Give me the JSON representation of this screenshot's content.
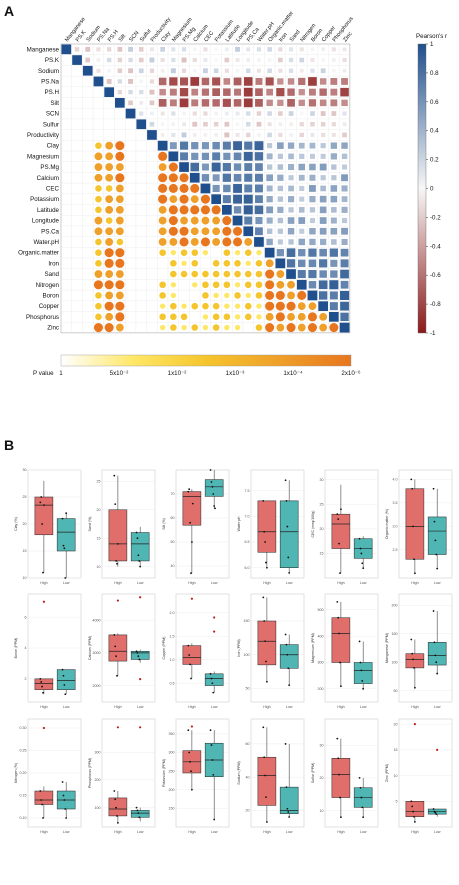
{
  "panels": {
    "a": "A",
    "b": "B"
  },
  "heatmap": {
    "variables": [
      "Manganese",
      "PS.K",
      "Sodium",
      "PS.Na",
      "PS.H",
      "Silt",
      "SCN",
      "Sulfur",
      "Productivity",
      "Clay",
      "Magnesium",
      "PS.Mg",
      "Calcium",
      "CEC",
      "Potassium",
      "Latitude",
      "Longitude",
      "PS.Ca",
      "Water.pH",
      "Organic.matter",
      "Iron",
      "Sand",
      "Nitrogen",
      "Boron",
      "Copper",
      "Phosphorus",
      "Zinc"
    ],
    "colorbar_title": "Pearson's r",
    "colorbar_ticks": [
      "1",
      "0.8",
      "0.6",
      "0.4",
      "0.2",
      "0",
      "-0.2",
      "-0.4",
      "-0.6",
      "-0.8",
      "-1"
    ],
    "colors": {
      "positive": "#1f4f8c",
      "negative": "#8b1a1a",
      "neutral": "#f7f7f7"
    },
    "pvalue_label": "P value",
    "pvalue_ticks": [
      "1",
      "5x10⁻²",
      "1x10⁻²",
      "1x10⁻³",
      "1x10⁻⁴",
      "2x10⁻⁶"
    ],
    "pvalue_colors": [
      "#ffffff",
      "#ffe766",
      "#f5c52d",
      "#efa02a",
      "#e8761e"
    ]
  },
  "chart_data": [
    {
      "type": "box",
      "ylabel": "Clay (%)",
      "categories": [
        "High",
        "Low"
      ],
      "yticks": [
        "10",
        "15",
        "20",
        "25",
        "30"
      ],
      "ylim": [
        10,
        30
      ],
      "boxes": [
        {
          "q1": 18,
          "median": 23.5,
          "q3": 25,
          "whisker_low": 11,
          "whisker_high": 28,
          "points": [
            24,
            25,
            20,
            11,
            23.5
          ]
        },
        {
          "q1": 15,
          "median": 18.5,
          "q3": 21,
          "whisker_low": 10,
          "whisker_high": 22,
          "points": [
            21,
            16,
            15.5,
            10,
            22
          ]
        }
      ]
    },
    {
      "type": "box",
      "ylabel": "Sand (%)",
      "categories": [
        "High",
        "Low"
      ],
      "yticks": [
        "10",
        "15",
        "20",
        "25"
      ],
      "ylim": [
        8,
        27
      ],
      "boxes": [
        {
          "q1": 11,
          "median": 14,
          "q3": 20,
          "whisker_low": 10,
          "whisker_high": 26,
          "points": [
            26,
            21,
            11,
            10.5,
            14
          ]
        },
        {
          "q1": 11,
          "median": 14,
          "q3": 16,
          "whisker_low": 10,
          "whisker_high": 17,
          "points": [
            16,
            15,
            12,
            11,
            10
          ]
        }
      ]
    },
    {
      "type": "box",
      "ylabel": "Silt (%)",
      "categories": [
        "High",
        "Low"
      ],
      "yticks": [
        "40",
        "50",
        "60",
        "70"
      ],
      "ylim": [
        35,
        80
      ],
      "boxes": [
        {
          "q1": 57,
          "median": 69,
          "q3": 71,
          "whisker_low": 37,
          "whisker_high": 72,
          "points": [
            71,
            72,
            58,
            37,
            50,
            66
          ]
        },
        {
          "q1": 69,
          "median": 73,
          "q3": 76,
          "whisker_low": 64,
          "whisker_high": 80,
          "points": [
            80,
            75,
            73,
            70,
            65,
            64
          ]
        }
      ]
    },
    {
      "type": "box",
      "ylabel": "Water.pH",
      "categories": [
        "High",
        "Low"
      ],
      "yticks": [
        "6.0",
        "6.5",
        "7.0",
        "7.5"
      ],
      "ylim": [
        5.8,
        7.9
      ],
      "boxes": [
        {
          "q1": 6.3,
          "median": 6.7,
          "q3": 7.3,
          "whisker_low": 6.0,
          "whisker_high": 7.3,
          "points": [
            7.3,
            6.7,
            6.5,
            6.1,
            6.0
          ]
        },
        {
          "q1": 6.0,
          "median": 6.7,
          "q3": 7.3,
          "whisker_low": 5.9,
          "whisker_high": 7.7,
          "points": [
            7.7,
            7.3,
            6.8,
            6.2,
            5.9
          ]
        }
      ]
    },
    {
      "type": "box",
      "ylabel": "CEC (meq/100g)",
      "categories": [
        "High",
        "Low"
      ],
      "yticks": [
        "15",
        "20",
        "25",
        "30"
      ],
      "ylim": [
        10,
        32
      ],
      "boxes": [
        {
          "q1": 16,
          "median": 21,
          "q3": 23,
          "whisker_low": 11,
          "whisker_high": 29,
          "points": [
            23,
            22,
            17,
            11,
            24
          ]
        },
        {
          "q1": 14,
          "median": 16,
          "q3": 18,
          "whisker_low": 12,
          "whisker_high": 18.5,
          "points": [
            18,
            16,
            15,
            13,
            12
          ]
        }
      ]
    },
    {
      "type": "box",
      "ylabel": "Organic.matter (%)",
      "categories": [
        "High",
        "Low"
      ],
      "yticks": [
        "2.5",
        "3.0",
        "3.5",
        "4.0"
      ],
      "ylim": [
        1.9,
        4.2
      ],
      "boxes": [
        {
          "q1": 2.3,
          "median": 3.0,
          "q3": 3.8,
          "whisker_low": 2.0,
          "whisker_high": 4.0,
          "points": [
            4.0,
            3.8,
            3.0,
            2.3,
            2.0
          ]
        },
        {
          "q1": 2.4,
          "median": 2.9,
          "q3": 3.2,
          "whisker_low": 2.1,
          "whisker_high": 3.8,
          "points": [
            3.8,
            3.1,
            2.7,
            2.4,
            2.1
          ]
        }
      ]
    },
    {
      "type": "box",
      "ylabel": "Boron (PPM)",
      "categories": [
        "High",
        "Low"
      ],
      "yticks": [
        "2",
        "4",
        "6"
      ],
      "ylim": [
        0.5,
        7.5
      ],
      "boxes": [
        {
          "q1": 1.3,
          "median": 1.7,
          "q3": 2.0,
          "whisker_low": 1.0,
          "whisker_high": 2.0,
          "points": [
            2.0,
            1.8,
            1.5,
            1.1
          ],
          "outliers": [
            7.0
          ]
        },
        {
          "q1": 1.3,
          "median": 1.9,
          "q3": 2.6,
          "whisker_low": 1.0,
          "whisker_high": 2.6,
          "points": [
            2.6,
            2.2,
            1.6,
            1.0
          ]
        }
      ]
    },
    {
      "type": "box",
      "ylabel": "Calcium (PPM)",
      "categories": [
        "High",
        "Low"
      ],
      "yticks": [
        "2000",
        "3000",
        "4000"
      ],
      "ylim": [
        1500,
        4800
      ],
      "boxes": [
        {
          "q1": 2750,
          "median": 3050,
          "q3": 3550,
          "whisker_low": 2300,
          "whisker_high": 3600,
          "points": [
            3550,
            3200,
            2900,
            2300
          ],
          "outliers": [
            4600
          ]
        },
        {
          "q1": 2800,
          "median": 3000,
          "q3": 3050,
          "whisker_low": 2700,
          "whisker_high": 3100,
          "points": [
            3050,
            3000,
            2900,
            2800
          ],
          "outliers": [
            4700,
            2200
          ]
        }
      ]
    },
    {
      "type": "box",
      "ylabel": "Copper (PPM)",
      "categories": [
        "High",
        "Low"
      ],
      "yticks": [
        "0.5",
        "1.0",
        "1.5",
        "2.0"
      ],
      "ylim": [
        0.1,
        2.4
      ],
      "boxes": [
        {
          "q1": 0.9,
          "median": 1.05,
          "q3": 1.3,
          "whisker_low": 0.6,
          "whisker_high": 1.35,
          "points": [
            1.3,
            1.1,
            0.9,
            0.6
          ],
          "outliers": [
            2.3
          ]
        },
        {
          "q1": 0.45,
          "median": 0.6,
          "q3": 0.7,
          "whisker_low": 0.3,
          "whisker_high": 0.75,
          "points": [
            0.7,
            0.6,
            0.5,
            0.3
          ],
          "outliers": [
            1.9,
            1.6
          ]
        }
      ]
    },
    {
      "type": "box",
      "ylabel": "Iron (PPM)",
      "categories": [
        "High",
        "Low"
      ],
      "yticks": [
        "50",
        "100",
        "150"
      ],
      "ylim": [
        30,
        190
      ],
      "boxes": [
        {
          "q1": 85,
          "median": 120,
          "q3": 150,
          "whisker_low": 60,
          "whisker_high": 185,
          "points": [
            185,
            150,
            120,
            90,
            60
          ]
        },
        {
          "q1": 80,
          "median": 100,
          "q3": 115,
          "whisker_low": 55,
          "whisker_high": 130,
          "points": [
            130,
            115,
            100,
            80,
            55
          ]
        }
      ]
    },
    {
      "type": "box",
      "ylabel": "Magnesium (PPM)",
      "categories": [
        "High",
        "Low"
      ],
      "yticks": [
        "200",
        "300",
        "400",
        "500"
      ],
      "ylim": [
        150,
        560
      ],
      "boxes": [
        {
          "q1": 300,
          "median": 410,
          "q3": 470,
          "whisker_low": 210,
          "whisker_high": 530,
          "points": [
            530,
            470,
            410,
            300,
            210
          ]
        },
        {
          "q1": 220,
          "median": 270,
          "q3": 300,
          "whisker_low": 200,
          "whisker_high": 380,
          "points": [
            380,
            300,
            270,
            230,
            200
          ]
        }
      ]
    },
    {
      "type": "box",
      "ylabel": "Manganese (PPM)",
      "categories": [
        "High",
        "Low"
      ],
      "yticks": [
        "50",
        "100",
        "150",
        "200"
      ],
      "ylim": [
        30,
        220
      ],
      "boxes": [
        {
          "q1": 90,
          "median": 105,
          "q3": 115,
          "whisker_low": 55,
          "whisker_high": 140,
          "points": [
            140,
            115,
            105,
            90,
            55
          ]
        },
        {
          "q1": 95,
          "median": 112,
          "q3": 135,
          "whisker_low": 80,
          "whisker_high": 190,
          "points": [
            190,
            135,
            112,
            100,
            80
          ]
        }
      ]
    },
    {
      "type": "box",
      "ylabel": "Nitrogen (%)",
      "categories": [
        "High",
        "Low"
      ],
      "yticks": [
        "0.10",
        "0.15",
        "0.20",
        "0.25",
        "0.30"
      ],
      "ylim": [
        0.08,
        0.32
      ],
      "boxes": [
        {
          "q1": 0.13,
          "median": 0.14,
          "q3": 0.16,
          "whisker_low": 0.1,
          "whisker_high": 0.17,
          "points": [
            0.16,
            0.14,
            0.13,
            0.1
          ],
          "outliers": [
            0.3
          ]
        },
        {
          "q1": 0.12,
          "median": 0.14,
          "q3": 0.16,
          "whisker_low": 0.1,
          "whisker_high": 0.18,
          "points": [
            0.18,
            0.15,
            0.14,
            0.12,
            0.1
          ]
        }
      ]
    },
    {
      "type": "box",
      "ylabel": "Phosphorus (PPM)",
      "categories": [
        "High",
        "Low"
      ],
      "yticks": [
        "100",
        "200",
        "300"
      ],
      "ylim": [
        30,
        420
      ],
      "boxes": [
        {
          "q1": 70,
          "median": 95,
          "q3": 135,
          "whisker_low": 45,
          "whisker_high": 160,
          "points": [
            160,
            130,
            100,
            70,
            45
          ],
          "outliers": [
            390
          ]
        },
        {
          "q1": 65,
          "median": 80,
          "q3": 90,
          "whisker_low": 50,
          "whisker_high": 100,
          "points": [
            100,
            90,
            80,
            65
          ],
          "outliers": [
            390
          ]
        }
      ]
    },
    {
      "type": "box",
      "ylabel": "Potassium (PPM)",
      "categories": [
        "High",
        "Low"
      ],
      "yticks": [
        "150",
        "200",
        "250",
        "300",
        "350"
      ],
      "ylim": [
        100,
        390
      ],
      "boxes": [
        {
          "q1": 245,
          "median": 275,
          "q3": 305,
          "whisker_low": 200,
          "whisker_high": 360,
          "points": [
            360,
            300,
            275,
            250,
            200
          ],
          "outliers": [
            370
          ]
        },
        {
          "q1": 235,
          "median": 280,
          "q3": 325,
          "whisker_low": 120,
          "whisker_high": 360,
          "points": [
            360,
            320,
            280,
            240,
            120
          ]
        }
      ]
    },
    {
      "type": "box",
      "ylabel": "Sodium (PPM)",
      "categories": [
        "High",
        "Low"
      ],
      "yticks": [
        "20",
        "40",
        "60"
      ],
      "ylim": [
        10,
        75
      ],
      "boxes": [
        {
          "q1": 23,
          "median": 41,
          "q3": 52,
          "whisker_low": 13,
          "whisker_high": 70,
          "points": [
            70,
            52,
            41,
            28,
            13
          ]
        },
        {
          "q1": 18,
          "median": 20,
          "q3": 34,
          "whisker_low": 16,
          "whisker_high": 60,
          "points": [
            60,
            34,
            21,
            19,
            16
          ]
        }
      ]
    },
    {
      "type": "box",
      "ylabel": "Sulfur (PPM)",
      "categories": [
        "High",
        "Low"
      ],
      "yticks": [
        "10",
        "20",
        "30"
      ],
      "ylim": [
        5,
        38
      ],
      "boxes": [
        {
          "q1": 14,
          "median": 21,
          "q3": 26,
          "whisker_low": 8,
          "whisker_high": 32,
          "points": [
            32,
            26,
            21,
            14,
            8
          ]
        },
        {
          "q1": 11,
          "median": 14,
          "q3": 17,
          "whisker_low": 8,
          "whisker_high": 20,
          "points": [
            20,
            17,
            14,
            11,
            8
          ]
        }
      ]
    },
    {
      "type": "box",
      "ylabel": "Zinc (PPM)",
      "categories": [
        "High",
        "Low"
      ],
      "yticks": [
        "5",
        "10",
        "15",
        "20"
      ],
      "ylim": [
        0,
        21
      ],
      "boxes": [
        {
          "q1": 2,
          "median": 3,
          "q3": 5,
          "whisker_low": 1,
          "whisker_high": 5,
          "points": [
            5,
            4,
            3,
            2,
            1
          ],
          "outliers": [
            20
          ]
        },
        {
          "q1": 2.5,
          "median": 3,
          "q3": 3.5,
          "whisker_low": 2,
          "whisker_high": 3.5,
          "points": [
            3.5,
            3,
            2.8,
            2.5
          ],
          "outliers": [
            15
          ]
        }
      ]
    }
  ],
  "box_colors": {
    "high": "#e06f6b",
    "low": "#4fb6b4",
    "outlier": "#c21d1d"
  }
}
